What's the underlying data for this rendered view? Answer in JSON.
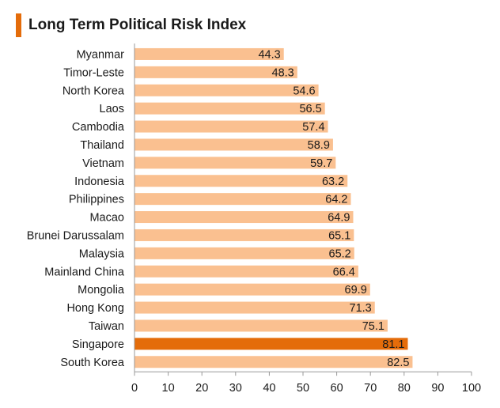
{
  "title": "Long Term Political Risk Index",
  "colors": {
    "accent": "#E46C0A",
    "bar": "#FAC090",
    "highlight_bar": "#E46C0A",
    "axis": "#999999"
  },
  "chart_data": {
    "type": "bar",
    "orientation": "horizontal",
    "title": "Long Term Political Risk Index",
    "xlabel": "",
    "ylabel": "",
    "xlim": [
      0,
      100
    ],
    "x_ticks": [
      "0",
      "10",
      "20",
      "30",
      "40",
      "50",
      "60",
      "70",
      "80",
      "90",
      "100"
    ],
    "grid": false,
    "legend": "none",
    "highlight": "Singapore",
    "categories": [
      "Myanmar",
      "Timor-Leste",
      "North Korea",
      "Laos",
      "Cambodia",
      "Thailand",
      "Vietnam",
      "Indonesia",
      "Philippines",
      "Macao",
      "Brunei Darussalam",
      "Malaysia",
      "Mainland China",
      "Mongolia",
      "Hong Kong",
      "Taiwan",
      "Singapore",
      "South Korea"
    ],
    "values": [
      44.3,
      48.3,
      54.6,
      56.5,
      57.4,
      58.9,
      59.7,
      63.2,
      64.2,
      64.9,
      65.1,
      65.2,
      66.4,
      69.9,
      71.3,
      75.1,
      81.1,
      82.5
    ],
    "value_labels": [
      "44.3",
      "48.3",
      "54.6",
      "56.5",
      "57.4",
      "58.9",
      "59.7",
      "63.2",
      "64.2",
      "64.9",
      "65.1",
      "65.2",
      "66.4",
      "69.9",
      "71.3",
      "75.1",
      "81.1",
      "82.5"
    ]
  }
}
